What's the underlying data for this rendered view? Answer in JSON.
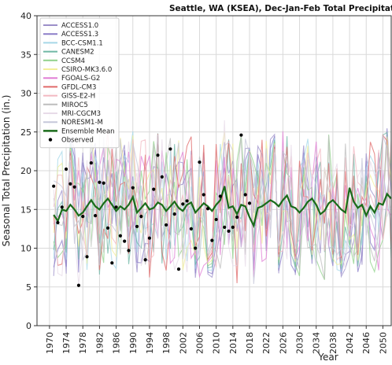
{
  "chart_data": {
    "type": "line",
    "title": "Seattle, WA (KSEA), Dec-Jan-Feb Total Precipitation",
    "xlabel": "Year",
    "ylabel": "Seasonal Total Precipitation (in.)",
    "xlim": [
      1967,
      2052
    ],
    "ylim": [
      0,
      40
    ],
    "x_ticks": [
      1970,
      1974,
      1978,
      1982,
      1986,
      1990,
      1994,
      1998,
      2002,
      2006,
      2010,
      2014,
      2018,
      2022,
      2026,
      2030,
      2034,
      2038,
      2042,
      2046,
      2050
    ],
    "y_ticks": [
      0,
      5,
      10,
      15,
      20,
      25,
      30,
      35,
      40
    ],
    "grid": true,
    "legend_placement": "top-left",
    "model_series": [
      {
        "name": "ACCESS1.0",
        "color": "#9c8fc9"
      },
      {
        "name": "ACCESS1.3",
        "color": "#8b7ec8"
      },
      {
        "name": "BCC-CSM1.1",
        "color": "#a6d8e8"
      },
      {
        "name": "CANESM2",
        "color": "#6fb7a5"
      },
      {
        "name": "CCSM4",
        "color": "#8fd18a"
      },
      {
        "name": "CSIRO-MK3.6.0",
        "color": "#f2ee9a"
      },
      {
        "name": "FGOALS-G2",
        "color": "#e17fd6"
      },
      {
        "name": "GFDL-CM3",
        "color": "#e06a6a"
      },
      {
        "name": "GISS-E2-H",
        "color": "#f2b8c1"
      },
      {
        "name": "MIROC5",
        "color": "#bdbdbd"
      },
      {
        "name": "MRI-CGCM3",
        "color": "#e7dbe8"
      },
      {
        "name": "NORESM1-M",
        "color": "#c5c7da"
      }
    ],
    "ensemble_mean": {
      "name": "Ensemble Mean",
      "color": "#1a6b1a",
      "x": [
        1971,
        1972,
        1973,
        1974,
        1975,
        1976,
        1977,
        1978,
        1979,
        1980,
        1981,
        1982,
        1983,
        1984,
        1985,
        1986,
        1987,
        1988,
        1989,
        1990,
        1991,
        1992,
        1993,
        1994,
        1995,
        1996,
        1997,
        1998,
        1999,
        2000,
        2001,
        2002,
        2003,
        2004,
        2005,
        2006,
        2007,
        2008,
        2009,
        2010,
        2011,
        2012,
        2013,
        2014,
        2015,
        2016,
        2017,
        2018,
        2019,
        2020,
        2021,
        2022,
        2023,
        2024,
        2025,
        2026,
        2027,
        2028,
        2029,
        2030,
        2031,
        2032,
        2033,
        2034,
        2035,
        2036,
        2037,
        2038,
        2039,
        2040,
        2041,
        2042,
        2043,
        2044,
        2045,
        2046,
        2047,
        2048,
        2049,
        2050,
        2051,
        2052
      ],
      "y": [
        14.3,
        13.5,
        15.0,
        14.8,
        15.6,
        15.0,
        14.2,
        14.6,
        15.4,
        16.2,
        15.4,
        15.0,
        15.8,
        16.4,
        15.6,
        14.8,
        15.4,
        15.0,
        15.6,
        16.6,
        14.6,
        15.2,
        15.8,
        15.0,
        15.2,
        15.9,
        15.6,
        14.8,
        15.4,
        16.0,
        15.2,
        14.8,
        15.6,
        15.9,
        14.6,
        15.2,
        15.8,
        15.4,
        14.8,
        15.6,
        16.2,
        18.0,
        15.2,
        15.4,
        14.4,
        15.6,
        15.4,
        14.0,
        12.9,
        15.2,
        15.4,
        15.8,
        16.2,
        15.9,
        15.4,
        16.2,
        16.8,
        15.4,
        15.2,
        14.6,
        15.2,
        16.0,
        16.4,
        15.6,
        14.4,
        14.8,
        15.8,
        16.2,
        15.6,
        15.0,
        14.6,
        17.8,
        16.0,
        15.2,
        15.6,
        14.2,
        15.4,
        14.6,
        15.8,
        15.6,
        17.0,
        16.4
      ]
    },
    "observed": {
      "name": "Observed",
      "color": "#000000",
      "x": [
        1971,
        1972,
        1973,
        1974,
        1975,
        1976,
        1977,
        1978,
        1979,
        1980,
        1981,
        1982,
        1983,
        1984,
        1985,
        1986,
        1987,
        1988,
        1989,
        1990,
        1991,
        1992,
        1993,
        1994,
        1995,
        1996,
        1997,
        1998,
        1999,
        2000,
        2001,
        2002,
        2003,
        2004,
        2005,
        2006,
        2007,
        2008,
        2009,
        2010,
        2011,
        2012,
        2013,
        2014,
        2015,
        2016,
        2017,
        2018
      ],
      "y": [
        18.0,
        13.3,
        15.3,
        20.2,
        18.3,
        17.9,
        5.2,
        14.1,
        8.9,
        21.0,
        14.2,
        18.5,
        18.4,
        12.6,
        8.1,
        15.3,
        11.6,
        10.9,
        9.7,
        17.8,
        12.8,
        14.1,
        8.5,
        11.3,
        17.6,
        22.0,
        19.2,
        13.0,
        22.8,
        14.4,
        7.3,
        15.7,
        16.1,
        12.5,
        10.0,
        21.1,
        16.9,
        15.1,
        11.0,
        13.7,
        16.7,
        12.7,
        12.2,
        12.7,
        14.0,
        24.6,
        16.9,
        15.8
      ]
    }
  }
}
